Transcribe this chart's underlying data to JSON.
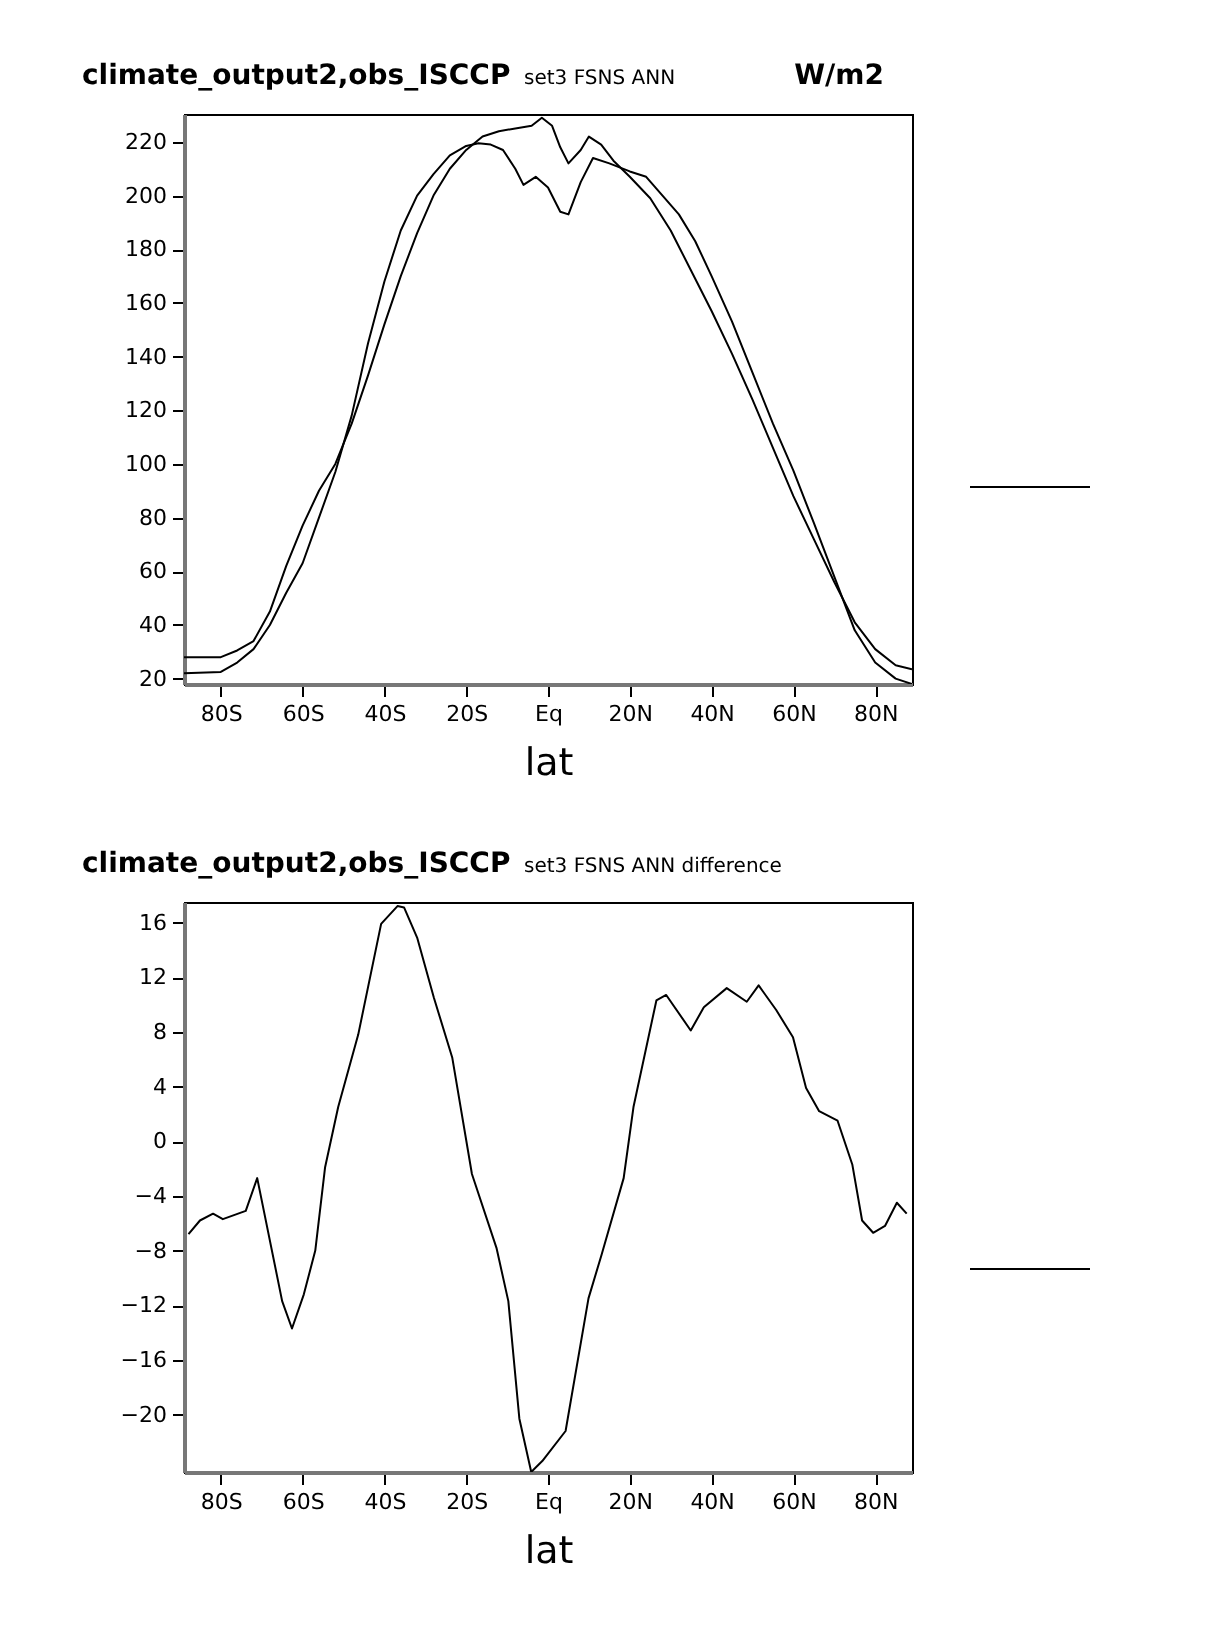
{
  "chart_data": [
    {
      "type": "line",
      "title": "climate_output2,obs_ISCCP",
      "subtitle": "set3 FSNS ANN",
      "xlabel": "lat",
      "annotations": [
        "W/m2"
      ],
      "xlim": [
        -89,
        89
      ],
      "ylim": [
        18,
        230.4
      ],
      "xticks": [
        {
          "value": -80,
          "label": "80S"
        },
        {
          "value": -60,
          "label": "60S"
        },
        {
          "value": -40,
          "label": "40S"
        },
        {
          "value": -20,
          "label": "20S"
        },
        {
          "value": 0,
          "label": "Eq"
        },
        {
          "value": 20,
          "label": "20N"
        },
        {
          "value": 40,
          "label": "40N"
        },
        {
          "value": 60,
          "label": "60N"
        },
        {
          "value": 80,
          "label": "80N"
        }
      ],
      "yticks": [
        20,
        40,
        60,
        80,
        100,
        120,
        140,
        160,
        180,
        200,
        220
      ],
      "series": [
        {
          "color": "#000000",
          "x": [
            -89,
            -80,
            -76,
            -72,
            -68,
            -64,
            -60,
            -56,
            -52,
            -48,
            -44,
            -40,
            -36,
            -32,
            -28,
            -24,
            -20,
            -17,
            -14,
            -11,
            -8,
            -6,
            -3,
            0,
            3,
            5,
            8,
            11,
            15,
            20,
            24,
            28,
            32,
            36,
            40,
            45,
            50,
            55,
            60,
            65,
            70,
            75,
            80,
            85,
            89
          ],
          "values": [
            22,
            22.5,
            26,
            31,
            40,
            52,
            63,
            80,
            97,
            118,
            145,
            168,
            187,
            200,
            208,
            215,
            218.5,
            219.5,
            219,
            217,
            210,
            204,
            207,
            203,
            194,
            193,
            205,
            214,
            212,
            209,
            207,
            200,
            193,
            183,
            170,
            153,
            134,
            115,
            97.5,
            78,
            58,
            38,
            26,
            20,
            18
          ]
        },
        {
          "color": "#000000",
          "x": [
            -89,
            -80,
            -76,
            -72,
            -68,
            -64,
            -60,
            -56,
            -52,
            -48,
            -44,
            -40,
            -36,
            -32,
            -28,
            -24,
            -20,
            -16,
            -12,
            -8,
            -4,
            -1.5,
            1,
            3,
            5,
            8,
            10,
            13,
            16,
            20,
            25,
            30,
            35,
            40,
            45,
            50,
            55,
            60,
            65,
            70,
            75,
            80,
            85,
            89
          ],
          "values": [
            28,
            28,
            30.5,
            34,
            45,
            62,
            77,
            90,
            100,
            115,
            133,
            152,
            170,
            186,
            200,
            210,
            217,
            222,
            224,
            225,
            226,
            229,
            226,
            218,
            212,
            217,
            222,
            219,
            213,
            207,
            199,
            187,
            172,
            157,
            141,
            124,
            106,
            88,
            72,
            56,
            41,
            31,
            25,
            23.5
          ]
        }
      ]
    },
    {
      "type": "line",
      "title": "climate_output2,obs_ISCCP",
      "subtitle": "set3 FSNS ANN difference",
      "xlabel": "lat",
      "xlim": [
        -89,
        89
      ],
      "ylim": [
        -24.2,
        17.5
      ],
      "xticks": [
        {
          "value": -80,
          "label": "80S"
        },
        {
          "value": -60,
          "label": "60S"
        },
        {
          "value": -40,
          "label": "40S"
        },
        {
          "value": -20,
          "label": "20S"
        },
        {
          "value": 0,
          "label": "Eq"
        },
        {
          "value": 20,
          "label": "20N"
        },
        {
          "value": 40,
          "label": "40N"
        },
        {
          "value": 60,
          "label": "60N"
        },
        {
          "value": 80,
          "label": "80N"
        }
      ],
      "yticks": [
        -20,
        -16,
        -12,
        -8,
        -4,
        0,
        4,
        8,
        12,
        16
      ],
      "series": [
        {
          "color": "#000000",
          "x": [
            -87.9,
            -85.1,
            -81.9,
            -79.5,
            -73.9,
            -71.1,
            -65,
            -62.6,
            -59.7,
            -56.9,
            -54.5,
            -51.3,
            -46.4,
            -40.8,
            -36.8,
            -35.2,
            -32,
            -27.9,
            -23.4,
            -18.6,
            -12.6,
            -9.7,
            -7,
            -4.1,
            -1.4,
            4.3,
            9.9,
            13.1,
            18.5,
            20.9,
            26.5,
            28.9,
            34.9,
            38.1,
            43.7,
            48.6,
            51.5,
            55.8,
            59.9,
            63.1,
            66.3,
            70.8,
            74.4,
            76.8,
            79.5,
            82.4,
            85.3,
            87.7
          ],
          "values": [
            -6.8,
            -5.8,
            -5.3,
            -5.7,
            -5.1,
            -2.7,
            -11.7,
            -13.7,
            -11.2,
            -8,
            -1.9,
            2.5,
            7.8,
            15.9,
            17.2,
            17.1,
            14.9,
            10.5,
            6.1,
            -2.4,
            -7.8,
            -11.7,
            -20.3,
            -24.2,
            -23.4,
            -21.2,
            -11.5,
            -8.3,
            -2.7,
            2.5,
            10.3,
            10.7,
            8.1,
            9.8,
            11.2,
            10.2,
            11.4,
            9.6,
            7.6,
            3.9,
            2.2,
            1.5,
            -1.7,
            -5.8,
            -6.7,
            -6.2,
            -4.5,
            -5.3
          ]
        }
      ]
    }
  ]
}
